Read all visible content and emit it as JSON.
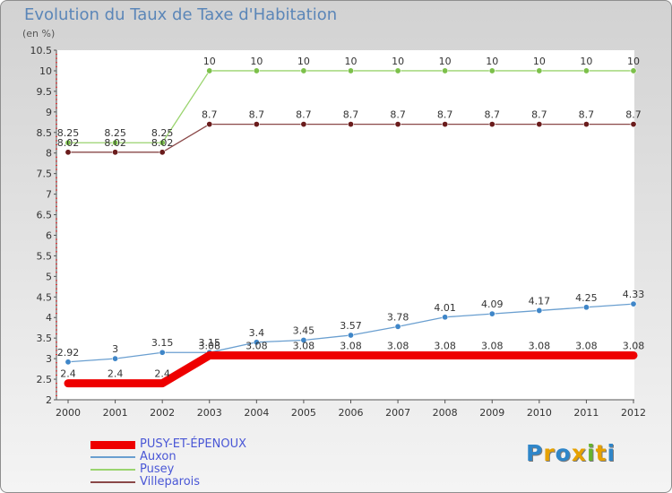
{
  "title": "Evolution du Taux de Taxe d'Habitation",
  "subtitle": "(en %)",
  "logo": {
    "letters": [
      "P",
      "r",
      "o",
      "x",
      "i",
      "t",
      "i"
    ],
    "colors": [
      "#2f86c9",
      "#e6a100",
      "#2f86c9",
      "#e6a100",
      "#66b32e",
      "#e6a100",
      "#2f86c9"
    ]
  },
  "chart_data": {
    "type": "line",
    "title": "Evolution du Taux de Taxe d'Habitation",
    "ylabel": "(en %)",
    "xlabel": "",
    "categories": [
      "2000",
      "2001",
      "2002",
      "2003",
      "2004",
      "2005",
      "2006",
      "2007",
      "2008",
      "2009",
      "2010",
      "2011",
      "2012"
    ],
    "ylim": [
      2,
      10.5
    ],
    "yticks": [
      "2",
      "2.5",
      "3",
      "3.5",
      "4",
      "4.5",
      "5",
      "5.5",
      "6",
      "6.5",
      "7",
      "7.5",
      "8",
      "8.5",
      "9",
      "9.5",
      "10",
      "10.5"
    ],
    "grid": false,
    "legend_position": "bottom-left",
    "series": [
      {
        "name": "PUSY-ET-ÉPENOUX",
        "color": "#ee0000",
        "width": 9,
        "marker": false,
        "values": [
          2.4,
          2.4,
          2.4,
          3.08,
          3.08,
          3.08,
          3.08,
          3.08,
          3.08,
          3.08,
          3.08,
          3.08,
          3.08
        ],
        "labels": [
          "2.4",
          "2.4",
          "2.4",
          "3.08",
          "3.08",
          "3.08",
          "3.08",
          "3.08",
          "3.08",
          "3.08",
          "3.08",
          "3.08",
          "3.08"
        ]
      },
      {
        "name": "Auxon",
        "color": "#6a9fd0",
        "marker_color": "#3f86c8",
        "width": 1.3,
        "marker": true,
        "values": [
          2.92,
          3,
          3.15,
          3.15,
          3.4,
          3.45,
          3.57,
          3.78,
          4.01,
          4.09,
          4.17,
          4.25,
          4.33
        ],
        "labels": [
          "2.92",
          "3",
          "3.15",
          "3.15",
          "3.4",
          "3.45",
          "3.57",
          "3.78",
          "4.01",
          "4.09",
          "4.17",
          "4.25",
          "4.33"
        ]
      },
      {
        "name": "Pusey",
        "color": "#9ad46e",
        "marker_color": "#7cc04a",
        "width": 1.3,
        "marker": true,
        "values": [
          8.25,
          8.25,
          8.25,
          10,
          10,
          10,
          10,
          10,
          10,
          10,
          10,
          10,
          10
        ],
        "labels": [
          "8.25",
          "8.25",
          "8.25",
          "10",
          "10",
          "10",
          "10",
          "10",
          "10",
          "10",
          "10",
          "10",
          "10"
        ]
      },
      {
        "name": "Villeparois",
        "color": "#8a4848",
        "marker_color": "#6a1c1c",
        "width": 1.3,
        "marker": true,
        "values": [
          8.02,
          8.02,
          8.02,
          8.7,
          8.7,
          8.7,
          8.7,
          8.7,
          8.7,
          8.7,
          8.7,
          8.7,
          8.7
        ],
        "labels": [
          "8.02",
          "8.02",
          "8.02",
          "8.7",
          "8.7",
          "8.7",
          "8.7",
          "8.7",
          "8.7",
          "8.7",
          "8.7",
          "8.7",
          "8.7"
        ]
      }
    ]
  }
}
